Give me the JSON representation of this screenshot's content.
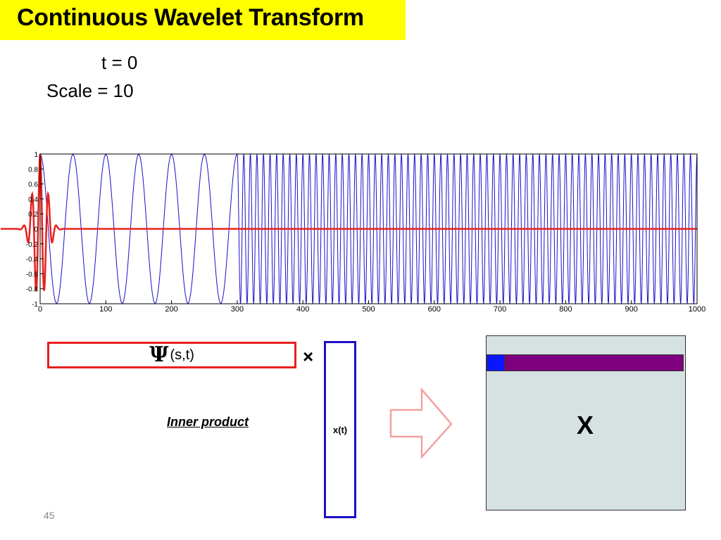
{
  "slide": {
    "title": "Continuous Wavelet Transform",
    "t_label": "t = 0",
    "scale_label": "Scale = 10",
    "psi_symbol": "Ψ",
    "psi_args": "(s,t)",
    "times_symbol": "×",
    "signal_label": "x(t)",
    "inner_product_label": "Inner product",
    "matrix_label": "X",
    "page_number": "45"
  },
  "colors": {
    "title_background": "#ffff00",
    "wavelet": "#e8201c",
    "signal": "#1a10c8",
    "arrow": "#f4a0a0",
    "matrix_background": "#d6e2e2",
    "matrix_row": "#7f007f",
    "matrix_cell": "#0a16ff"
  },
  "chart_data": {
    "type": "line",
    "xlim": [
      0,
      1000
    ],
    "ylim": [
      -1,
      1
    ],
    "x_ticks": [
      "0",
      "100",
      "200",
      "300",
      "400",
      "500",
      "600",
      "700",
      "800",
      "900",
      "1000"
    ],
    "y_ticks": [
      "1",
      "0.8",
      "0.6",
      "0.4",
      "0.2",
      "0",
      "-0.2",
      "-0.4",
      "-0.6",
      "-0.8",
      "-1"
    ],
    "series": [
      {
        "role": "signal",
        "color": "#1a10c8",
        "segments": [
          {
            "x_start": 0,
            "x_end": 300,
            "period": 50
          },
          {
            "x_start": 300,
            "x_end": 1000,
            "period": 10
          }
        ]
      },
      {
        "role": "wavelet",
        "color": "#e8201c",
        "center": 0,
        "scale": 10
      }
    ]
  }
}
